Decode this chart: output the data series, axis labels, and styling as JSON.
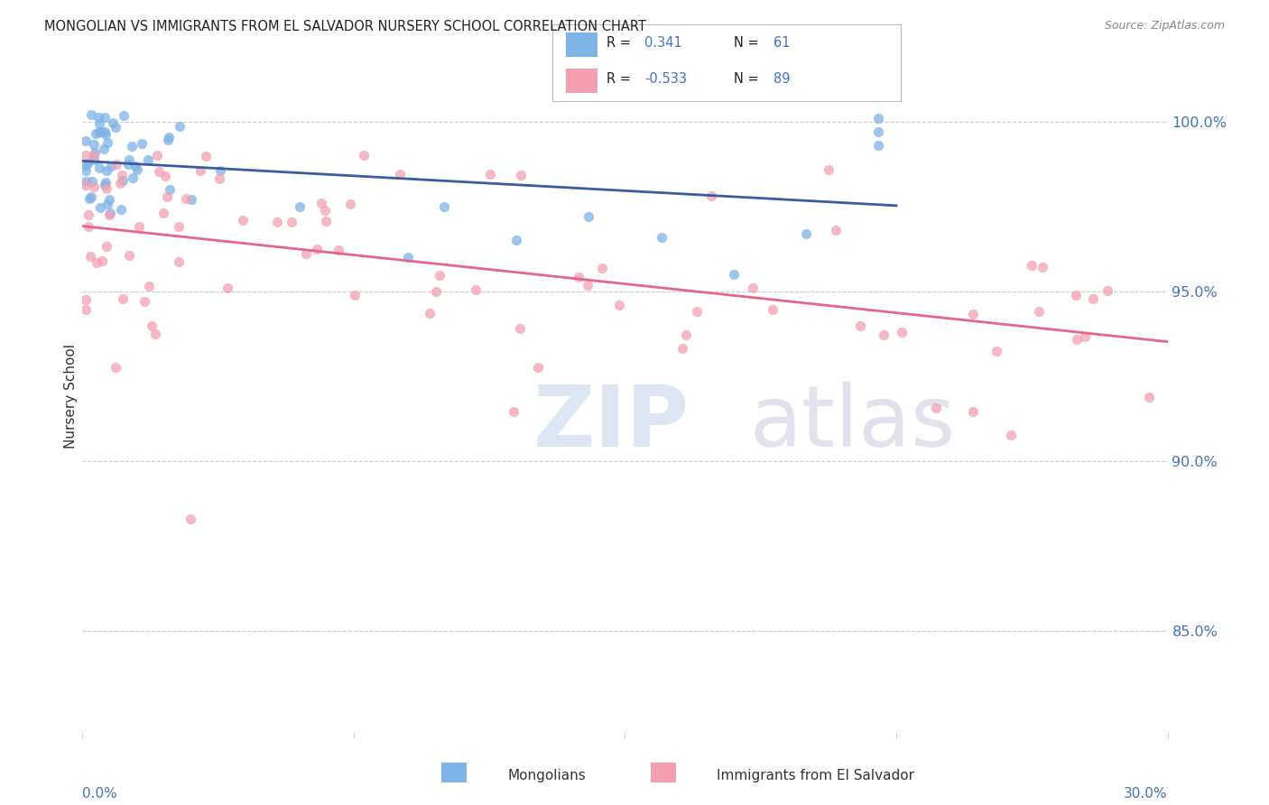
{
  "title": "MONGOLIAN VS IMMIGRANTS FROM EL SALVADOR NURSERY SCHOOL CORRELATION CHART",
  "source": "Source: ZipAtlas.com",
  "ylabel": "Nursery School",
  "ytick_labels": [
    "100.0%",
    "95.0%",
    "90.0%",
    "85.0%"
  ],
  "ytick_values": [
    1.0,
    0.95,
    0.9,
    0.85
  ],
  "xmin": 0.0,
  "xmax": 0.3,
  "ymin": 0.82,
  "ymax": 1.018,
  "color_mongolian": "#7EB3E8",
  "color_salvador": "#F4A0B0",
  "color_line_mongolian": "#3A5BA0",
  "color_line_salvador": "#E8658A",
  "color_axis_right": "#4472C4",
  "watermark_zip_color": "#C5D8EC",
  "watermark_atlas_color": "#D0C8E0"
}
